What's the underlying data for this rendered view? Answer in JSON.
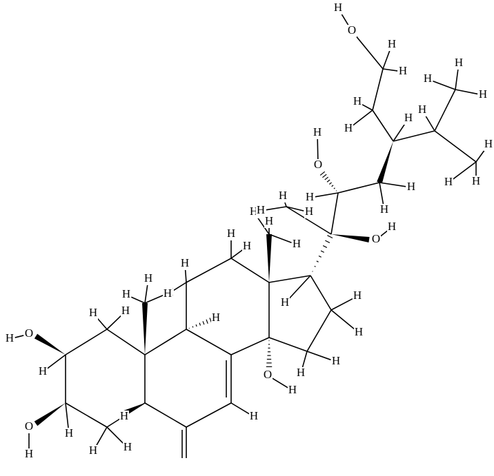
{
  "labels": [
    "H",
    "O",
    "H",
    "O",
    "H",
    "H",
    "H",
    "H",
    "H",
    "H",
    "H",
    "H",
    "H",
    "H",
    "H",
    "H",
    "H",
    "H",
    "H",
    "H",
    "H",
    "H",
    "H",
    "H",
    "O",
    "H",
    "H",
    "H",
    "H",
    "H",
    "O",
    "H",
    "H",
    "H",
    "H",
    "H",
    "O",
    "H",
    "H",
    "H",
    "H",
    "H",
    "H",
    "H",
    "H",
    "O",
    "H",
    "H",
    "H",
    "H",
    "H",
    "H",
    "H",
    "H"
  ]
}
